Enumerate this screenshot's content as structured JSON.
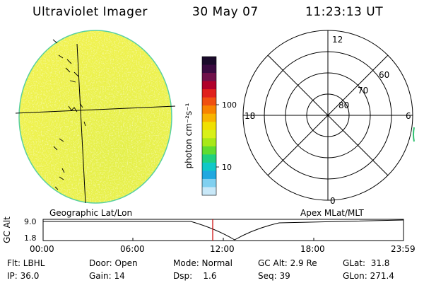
{
  "header": {
    "instrument": "Ultraviolet Imager",
    "date": "30 May 07",
    "time": "11:23:13 UT"
  },
  "colorbar": {
    "unit_label": "photon cm⁻²s⁻¹",
    "tick_100": "100",
    "tick_10": "10",
    "colors": [
      "#1a0a2a",
      "#3a0a40",
      "#70104a",
      "#b0002a",
      "#e0201c",
      "#f05010",
      "#f88400",
      "#f8b400",
      "#f0e000",
      "#d8f018",
      "#a8e818",
      "#60dc30",
      "#20d080",
      "#10c8c8",
      "#20a8e0",
      "#80d0f0",
      "#c8e8f8"
    ]
  },
  "polar_plot": {
    "mlt_labels": {
      "top": "12",
      "right": "6",
      "bottom": "0",
      "left": "18"
    },
    "lat_labels": [
      "60",
      "70",
      "80"
    ]
  },
  "timeline": {
    "axis_title": "GC Alt",
    "y_ticks": [
      "9.0",
      "1.8"
    ],
    "left_caption": "Geographic Lat/Lon",
    "right_caption": "Apex MLat/MLT",
    "x_ticks": [
      "00:00",
      "06:00",
      "12:00",
      "18:00",
      "23:59"
    ],
    "marker_color": "#cc0000"
  },
  "status": {
    "flt": "Flt: LBHL",
    "ip": "IP: 36.0",
    "door": "Door: Open",
    "gain": "Gain: 14",
    "mode": "Mode: Normal",
    "dsp": "Dsp:    1.6",
    "gc_alt": "GC Alt: 2.9 Re",
    "seq": "Seq: 39",
    "glat": "GLat:  31.8",
    "glon": "GLon: 271.4"
  }
}
